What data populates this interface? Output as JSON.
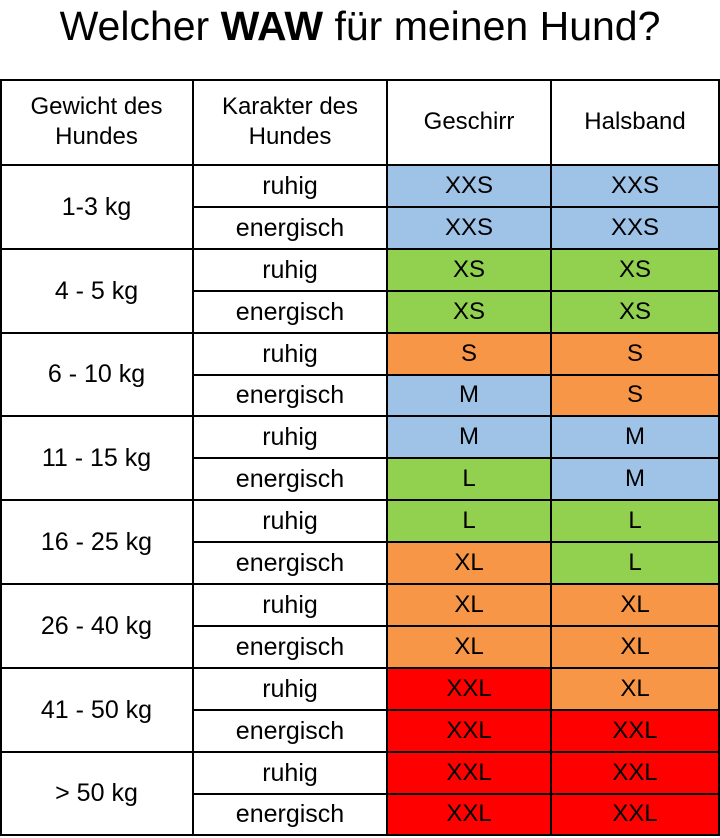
{
  "title": {
    "prefix": "Welcher ",
    "bold": "WAW",
    "suffix": " für meinen Hund?"
  },
  "headers": {
    "weight": "Gewicht des Hundes",
    "character": "Karakter des Hundes",
    "harness": "Geschirr",
    "collar": "Halsband"
  },
  "colors": {
    "blue": "#9fc2e7",
    "green": "#92d050",
    "orange": "#f79646",
    "red": "#ff0000"
  },
  "groups": [
    {
      "weight": "1-3 kg",
      "rows": [
        {
          "character": "ruhig",
          "harness": "XXS",
          "harness_color": "blue",
          "collar": "XXS",
          "collar_color": "blue"
        },
        {
          "character": "energisch",
          "harness": "XXS",
          "harness_color": "blue",
          "collar": "XXS",
          "collar_color": "blue"
        }
      ]
    },
    {
      "weight": "4 - 5 kg",
      "rows": [
        {
          "character": "ruhig",
          "harness": "XS",
          "harness_color": "green",
          "collar": "XS",
          "collar_color": "green"
        },
        {
          "character": "energisch",
          "harness": "XS",
          "harness_color": "green",
          "collar": "XS",
          "collar_color": "green"
        }
      ]
    },
    {
      "weight": "6 - 10 kg",
      "rows": [
        {
          "character": "ruhig",
          "harness": "S",
          "harness_color": "orange",
          "collar": "S",
          "collar_color": "orange"
        },
        {
          "character": "energisch",
          "harness": "M",
          "harness_color": "blue",
          "collar": "S",
          "collar_color": "orange"
        }
      ]
    },
    {
      "weight": "11 - 15 kg",
      "rows": [
        {
          "character": "ruhig",
          "harness": "M",
          "harness_color": "blue",
          "collar": "M",
          "collar_color": "blue"
        },
        {
          "character": "energisch",
          "harness": "L",
          "harness_color": "green",
          "collar": "M",
          "collar_color": "blue"
        }
      ]
    },
    {
      "weight": "16 - 25 kg",
      "rows": [
        {
          "character": "ruhig",
          "harness": "L",
          "harness_color": "green",
          "collar": "L",
          "collar_color": "green"
        },
        {
          "character": "energisch",
          "harness": "XL",
          "harness_color": "orange",
          "collar": "L",
          "collar_color": "green"
        }
      ]
    },
    {
      "weight": "26 - 40 kg",
      "rows": [
        {
          "character": "ruhig",
          "harness": "XL",
          "harness_color": "orange",
          "collar": "XL",
          "collar_color": "orange"
        },
        {
          "character": "energisch",
          "harness": "XL",
          "harness_color": "orange",
          "collar": "XL",
          "collar_color": "orange"
        }
      ]
    },
    {
      "weight": "41 - 50 kg",
      "rows": [
        {
          "character": "ruhig",
          "harness": "XXL",
          "harness_color": "red",
          "collar": "XL",
          "collar_color": "orange"
        },
        {
          "character": "energisch",
          "harness": "XXL",
          "harness_color": "red",
          "collar": "XXL",
          "collar_color": "red"
        }
      ]
    },
    {
      "weight": "> 50 kg",
      "rows": [
        {
          "character": "ruhig",
          "harness": "XXL",
          "harness_color": "red",
          "collar": "XXL",
          "collar_color": "red"
        },
        {
          "character": "energisch",
          "harness": "XXL",
          "harness_color": "red",
          "collar": "XXL",
          "collar_color": "red"
        }
      ]
    }
  ]
}
